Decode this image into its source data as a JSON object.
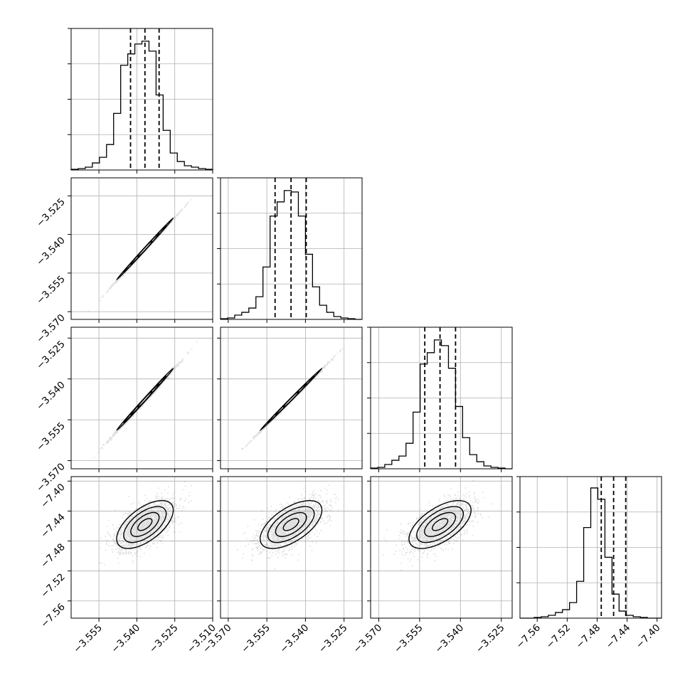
{
  "chart_data": {
    "type": "corner",
    "grid": true,
    "parameters": [
      {
        "index": 0,
        "range": [
          -3.566,
          -3.51
        ],
        "ticks": [
          -3.555,
          -3.54,
          -3.525,
          -3.51
        ],
        "tick_labels": [
          "−3.555",
          "−3.540",
          "−3.525",
          "−3.510"
        ],
        "median": -3.5368,
        "q16": -3.5425,
        "q84": -3.5312,
        "sigma": 0.0056
      },
      {
        "index": 1,
        "range": [
          -3.573,
          -3.518
        ],
        "ticks": [
          -3.57,
          -3.555,
          -3.54,
          -3.525
        ],
        "tick_labels": [
          "−3.570",
          "−3.555",
          "−3.540",
          "−3.525"
        ],
        "median": -3.5456,
        "q16": -3.5518,
        "q84": -3.5397,
        "sigma": 0.006
      },
      {
        "index": 2,
        "range": [
          -3.573,
          -3.521
        ],
        "ticks": [
          -3.57,
          -3.555,
          -3.54,
          -3.525
        ],
        "tick_labels": [
          "−3.570",
          "−3.555",
          "−3.540",
          "−3.525"
        ],
        "median": -3.5475,
        "q16": -3.5531,
        "q84": -3.5418,
        "sigma": 0.0057
      },
      {
        "index": 3,
        "range": [
          -7.583,
          -7.394
        ],
        "ticks": [
          -7.56,
          -7.52,
          -7.48,
          -7.44,
          -7.4
        ],
        "tick_labels": [
          "−7.56",
          "−7.52",
          "−7.48",
          "−7.44",
          "−7.40"
        ],
        "median": -7.458,
        "q16": -7.4745,
        "q84": -7.4418,
        "sigma": 0.016
      }
    ],
    "y_axis_parameter_ticks": {
      "row_1": {
        "ticks": [
          -3.525,
          -3.54,
          -3.555,
          -3.57
        ],
        "tick_labels": [
          "−3.525",
          "−3.540",
          "−3.555",
          "−3.570"
        ]
      },
      "row_2": {
        "ticks": [
          -3.525,
          -3.54,
          -3.555,
          -3.57
        ],
        "tick_labels": [
          "−3.525",
          "−3.540",
          "−3.555",
          "−3.570"
        ]
      },
      "row_3": {
        "ticks": [
          -7.4,
          -7.44,
          -7.48,
          -7.52,
          -7.56
        ],
        "tick_labels": [
          "−7.40",
          "−7.44",
          "−7.48",
          "−7.52",
          "−7.56"
        ]
      }
    },
    "correlations": {
      "0-1": 0.999,
      "0-2": 0.998,
      "1-2": 0.999,
      "0-3": 0.6,
      "1-3": 0.6,
      "2-3": 0.6
    },
    "histograms": [
      [
        0.005,
        0.01,
        0.02,
        0.05,
        0.09,
        0.18,
        0.4,
        0.74,
        0.82,
        0.89,
        0.91,
        0.84,
        0.53,
        0.28,
        0.12,
        0.06,
        0.03,
        0.02,
        0.01,
        0.005
      ],
      [
        0.005,
        0.01,
        0.03,
        0.05,
        0.08,
        0.16,
        0.37,
        0.73,
        0.83,
        0.91,
        0.9,
        0.73,
        0.46,
        0.23,
        0.1,
        0.05,
        0.02,
        0.01,
        0.005,
        0.0
      ],
      [
        0.005,
        0.01,
        0.03,
        0.06,
        0.09,
        0.18,
        0.4,
        0.74,
        0.82,
        0.91,
        0.87,
        0.71,
        0.44,
        0.22,
        0.1,
        0.05,
        0.02,
        0.01,
        0.005,
        0.0
      ],
      [
        0.0,
        0.0,
        0.005,
        0.01,
        0.02,
        0.04,
        0.06,
        0.11,
        0.26,
        0.64,
        0.92,
        0.84,
        0.43,
        0.17,
        0.05,
        0.02,
        0.01,
        0.005,
        0.0,
        0.0
      ]
    ]
  }
}
